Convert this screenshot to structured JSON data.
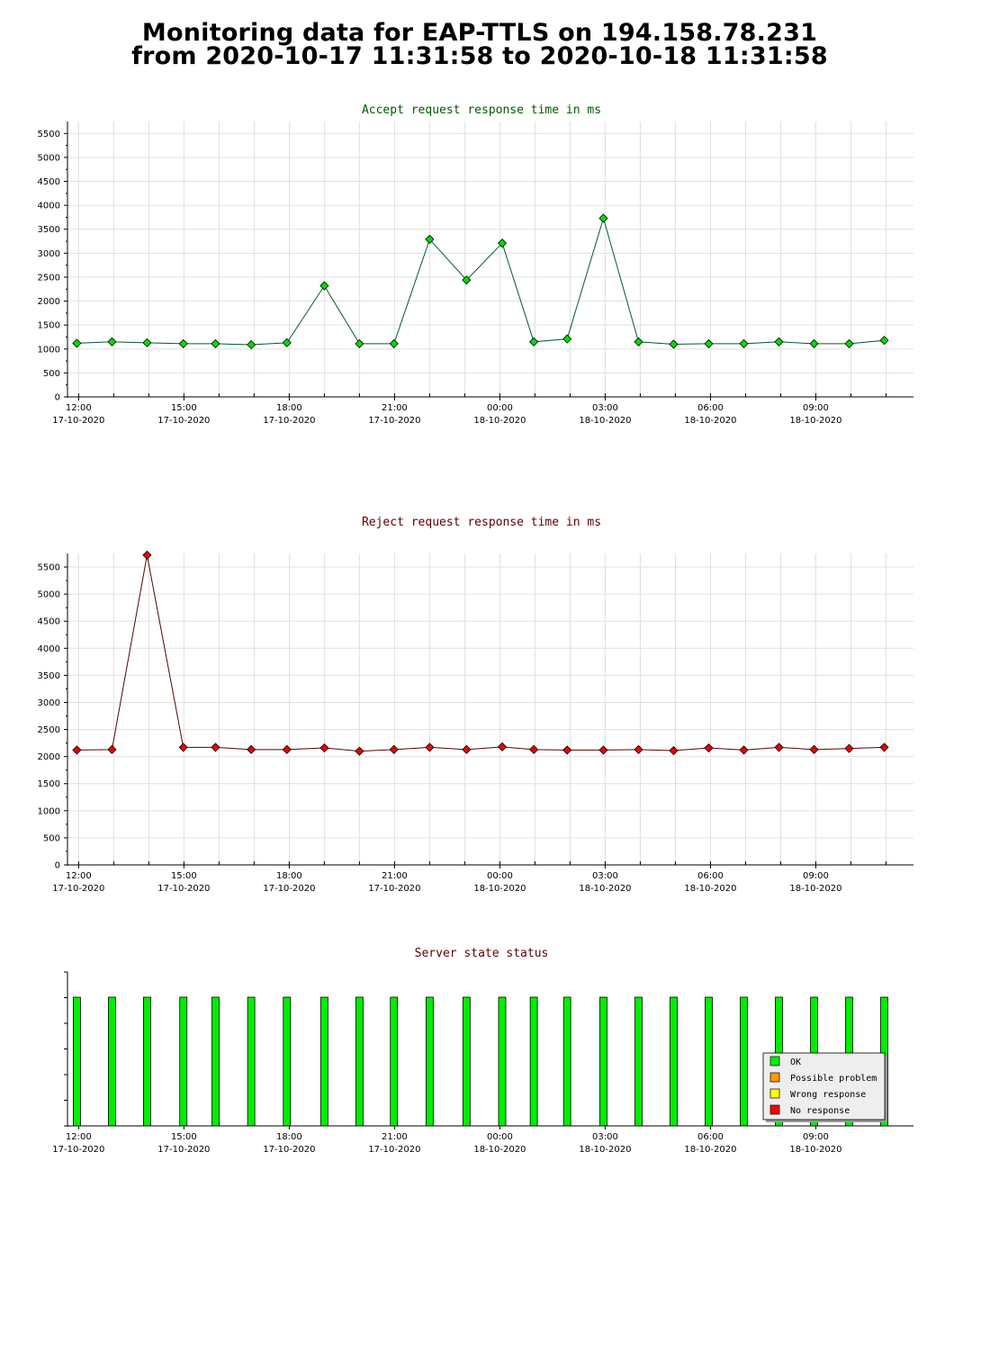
{
  "page": {
    "title_line1": "Monitoring data for EAP-TTLS on 194.158.78.231",
    "title_line2": "from 2020-10-17 11:31:58 to 2020-10-18 11:31:58"
  },
  "colors": {
    "accept_title": "#005a00",
    "reject_title": "#5a0000",
    "accept_marker": "#00dd00",
    "accept_line": "#005a32",
    "reject_marker": "#ee0000",
    "reject_line": "#5a0000",
    "ok": "#00ee00",
    "possible_problem": "#ff9900",
    "wrong_response": "#ffff00",
    "no_response": "#ff0000",
    "grid": "#e0e0e0"
  },
  "chart_data": [
    {
      "type": "line",
      "title": "Accept request response time in ms",
      "ylim": [
        0,
        5750
      ],
      "yticks": [
        0,
        500,
        1000,
        1500,
        2000,
        2500,
        3000,
        3500,
        4000,
        4500,
        5000,
        5500
      ],
      "x_range_hours": [
        "2020-10-17 11:41",
        "2020-10-18 11:47"
      ],
      "xticks": [
        {
          "time": "12:00",
          "date": "17-10-2020"
        },
        {
          "time": "15:00",
          "date": "17-10-2020"
        },
        {
          "time": "18:00",
          "date": "17-10-2020"
        },
        {
          "time": "21:00",
          "date": "17-10-2020"
        },
        {
          "time": "00:00",
          "date": "18-10-2020"
        },
        {
          "time": "03:00",
          "date": "18-10-2020"
        },
        {
          "time": "06:00",
          "date": "18-10-2020"
        },
        {
          "time": "09:00",
          "date": "18-10-2020"
        }
      ],
      "grid": true,
      "x": [
        "2020-10-17 11:57",
        "2020-10-17 12:57",
        "2020-10-17 13:57",
        "2020-10-17 14:59",
        "2020-10-17 15:54",
        "2020-10-17 16:55",
        "2020-10-17 17:56",
        "2020-10-17 19:00",
        "2020-10-17 20:00",
        "2020-10-17 20:59",
        "2020-10-17 22:00",
        "2020-10-17 23:03",
        "2020-10-18 00:04",
        "2020-10-18 00:58",
        "2020-10-18 01:55",
        "2020-10-18 02:57",
        "2020-10-18 03:57",
        "2020-10-18 04:57",
        "2020-10-18 05:57",
        "2020-10-18 06:57",
        "2020-10-18 07:57",
        "2020-10-18 08:57",
        "2020-10-18 09:57",
        "2020-10-18 10:57"
      ],
      "values": [
        1120,
        1150,
        1130,
        1110,
        1110,
        1090,
        1130,
        2320,
        1110,
        1110,
        3290,
        2440,
        3210,
        1150,
        1210,
        3730,
        1150,
        1100,
        1110,
        1110,
        1150,
        1110,
        1110,
        1180
      ]
    },
    {
      "type": "line",
      "title": "Reject request response time in ms",
      "ylim": [
        0,
        5750
      ],
      "yticks": [
        0,
        500,
        1000,
        1500,
        2000,
        2500,
        3000,
        3500,
        4000,
        4500,
        5000,
        5500
      ],
      "x_range_hours": [
        "2020-10-17 11:41",
        "2020-10-18 11:47"
      ],
      "xticks": [
        {
          "time": "12:00",
          "date": "17-10-2020"
        },
        {
          "time": "15:00",
          "date": "17-10-2020"
        },
        {
          "time": "18:00",
          "date": "17-10-2020"
        },
        {
          "time": "21:00",
          "date": "17-10-2020"
        },
        {
          "time": "00:00",
          "date": "18-10-2020"
        },
        {
          "time": "03:00",
          "date": "18-10-2020"
        },
        {
          "time": "06:00",
          "date": "18-10-2020"
        },
        {
          "time": "09:00",
          "date": "18-10-2020"
        }
      ],
      "grid": true,
      "x": [
        "2020-10-17 11:57",
        "2020-10-17 12:57",
        "2020-10-17 13:57",
        "2020-10-17 14:59",
        "2020-10-17 15:54",
        "2020-10-17 16:55",
        "2020-10-17 17:56",
        "2020-10-17 19:00",
        "2020-10-17 20:00",
        "2020-10-17 20:59",
        "2020-10-17 22:00",
        "2020-10-17 23:03",
        "2020-10-18 00:04",
        "2020-10-18 00:58",
        "2020-10-18 01:55",
        "2020-10-18 02:57",
        "2020-10-18 03:57",
        "2020-10-18 04:57",
        "2020-10-18 05:57",
        "2020-10-18 06:57",
        "2020-10-18 07:57",
        "2020-10-18 08:57",
        "2020-10-18 09:57",
        "2020-10-18 10:57"
      ],
      "values": [
        2120,
        2130,
        5720,
        2170,
        2170,
        2130,
        2130,
        2160,
        2100,
        2130,
        2170,
        2130,
        2180,
        2130,
        2120,
        2120,
        2130,
        2110,
        2160,
        2120,
        2170,
        2130,
        2150,
        2170
      ]
    },
    {
      "type": "bar",
      "title": "Server state status",
      "x_range_hours": [
        "2020-10-17 11:41",
        "2020-10-18 11:47"
      ],
      "xticks": [
        {
          "time": "12:00",
          "date": "17-10-2020"
        },
        {
          "time": "15:00",
          "date": "17-10-2020"
        },
        {
          "time": "18:00",
          "date": "17-10-2020"
        },
        {
          "time": "21:00",
          "date": "17-10-2020"
        },
        {
          "time": "00:00",
          "date": "18-10-2020"
        },
        {
          "time": "03:00",
          "date": "18-10-2020"
        },
        {
          "time": "06:00",
          "date": "18-10-2020"
        },
        {
          "time": "09:00",
          "date": "18-10-2020"
        }
      ],
      "x": [
        "2020-10-17 11:57",
        "2020-10-17 12:57",
        "2020-10-17 13:57",
        "2020-10-17 14:59",
        "2020-10-17 15:54",
        "2020-10-17 16:55",
        "2020-10-17 17:56",
        "2020-10-17 19:00",
        "2020-10-17 20:00",
        "2020-10-17 20:59",
        "2020-10-17 22:00",
        "2020-10-17 23:03",
        "2020-10-18 00:04",
        "2020-10-18 00:58",
        "2020-10-18 01:55",
        "2020-10-18 02:57",
        "2020-10-18 03:57",
        "2020-10-18 04:57",
        "2020-10-18 05:57",
        "2020-10-18 06:57",
        "2020-10-18 07:57",
        "2020-10-18 08:57",
        "2020-10-18 09:57",
        "2020-10-18 10:57"
      ],
      "states": [
        "OK",
        "OK",
        "OK",
        "OK",
        "OK",
        "OK",
        "OK",
        "OK",
        "OK",
        "OK",
        "OK",
        "OK",
        "OK",
        "OK",
        "OK",
        "OK",
        "OK",
        "OK",
        "OK",
        "OK",
        "OK",
        "OK",
        "OK",
        "OK"
      ],
      "legend": [
        "OK",
        "Possible problem",
        "Wrong response",
        "No response"
      ],
      "legend_position": "bottom-right"
    }
  ]
}
